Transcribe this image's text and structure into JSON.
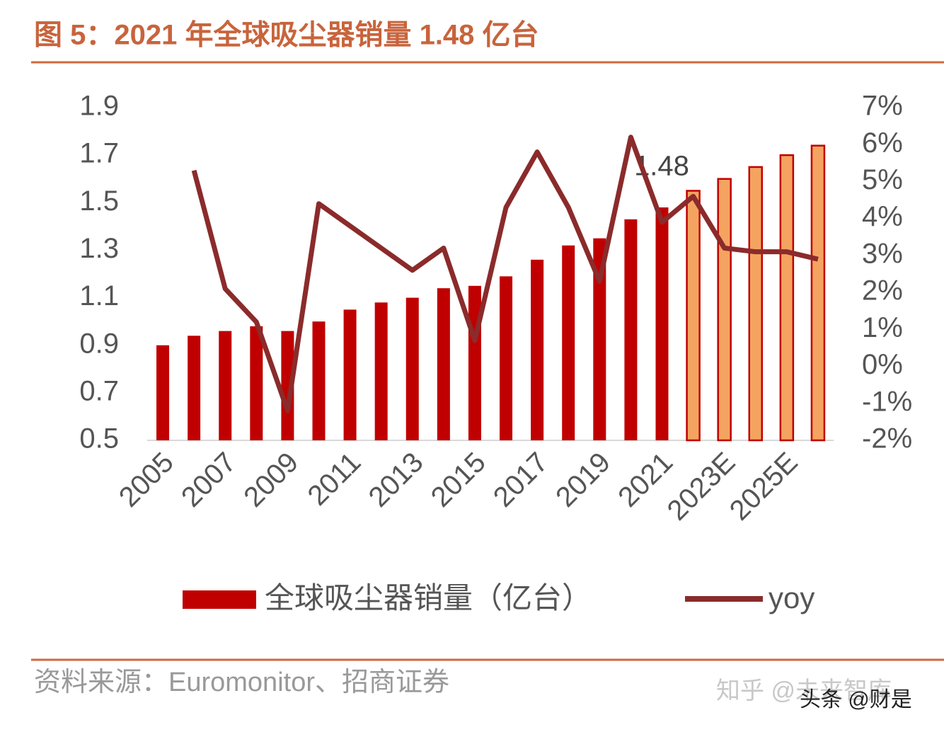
{
  "chart_data": {
    "type": "bar_line",
    "title": "图 5：2021 年全球吸尘器销量 1.48 亿台",
    "source": "资料来源：Euromonitor、招商证券",
    "watermarks": [
      "知乎 @未来智库",
      "头条 @财是"
    ],
    "annotation": "1.48",
    "categories": [
      "2005",
      null,
      "2007",
      null,
      "2009",
      null,
      "2011",
      null,
      "2013",
      null,
      "2015",
      null,
      "2017",
      null,
      "2019",
      null,
      "2021",
      null,
      "2023E",
      null,
      "2025E",
      null
    ],
    "series": [
      {
        "name": "全球吸尘器销量（亿台）",
        "type": "bar",
        "color": "#c00000",
        "colors": [
          "#c00000",
          "#c00000",
          "#c00000",
          "#c00000",
          "#c00000",
          "#c00000",
          "#c00000",
          "#c00000",
          "#c00000",
          "#c00000",
          "#c00000",
          "#c00000",
          "#c00000",
          "#c00000",
          "#c00000",
          "#c00000",
          "#c00000",
          "#f4a460",
          "#f4a460",
          "#f4a460",
          "#f4a460",
          "#f4a460"
        ],
        "values": [
          0.9,
          0.94,
          0.96,
          0.98,
          0.96,
          1.0,
          1.05,
          1.08,
          1.1,
          1.14,
          1.15,
          1.19,
          1.26,
          1.32,
          1.35,
          1.43,
          1.48,
          1.55,
          1.6,
          1.65,
          1.7,
          1.74
        ]
      },
      {
        "name": "yoy",
        "type": "line",
        "axis": "y2",
        "color": "#8b2b2b",
        "values": [
          null,
          5.3,
          2.1,
          1.2,
          -1.2,
          4.4,
          3.8,
          3.2,
          2.6,
          3.2,
          0.7,
          4.3,
          5.8,
          4.3,
          2.3,
          6.2,
          3.9,
          4.6,
          3.2,
          3.1,
          3.1,
          2.9
        ]
      }
    ],
    "ylim": [
      0.5,
      1.9
    ],
    "yticks": [
      0.5,
      0.7,
      0.9,
      1.1,
      1.3,
      1.5,
      1.7,
      1.9
    ],
    "y2lim": [
      -2,
      7
    ],
    "y2ticks": [
      {
        "value": -2,
        "label": "-2%"
      },
      {
        "value": -1,
        "label": "-1%"
      },
      {
        "value": 0,
        "label": "0%"
      },
      {
        "value": 1,
        "label": "1%"
      },
      {
        "value": 2,
        "label": "2%"
      },
      {
        "value": 3,
        "label": "3%"
      },
      {
        "value": 4,
        "label": "4%"
      },
      {
        "value": 5,
        "label": "5%"
      },
      {
        "value": 6,
        "label": "6%"
      },
      {
        "value": 7,
        "label": "7%"
      }
    ],
    "grid": false,
    "legend": "bottom"
  }
}
